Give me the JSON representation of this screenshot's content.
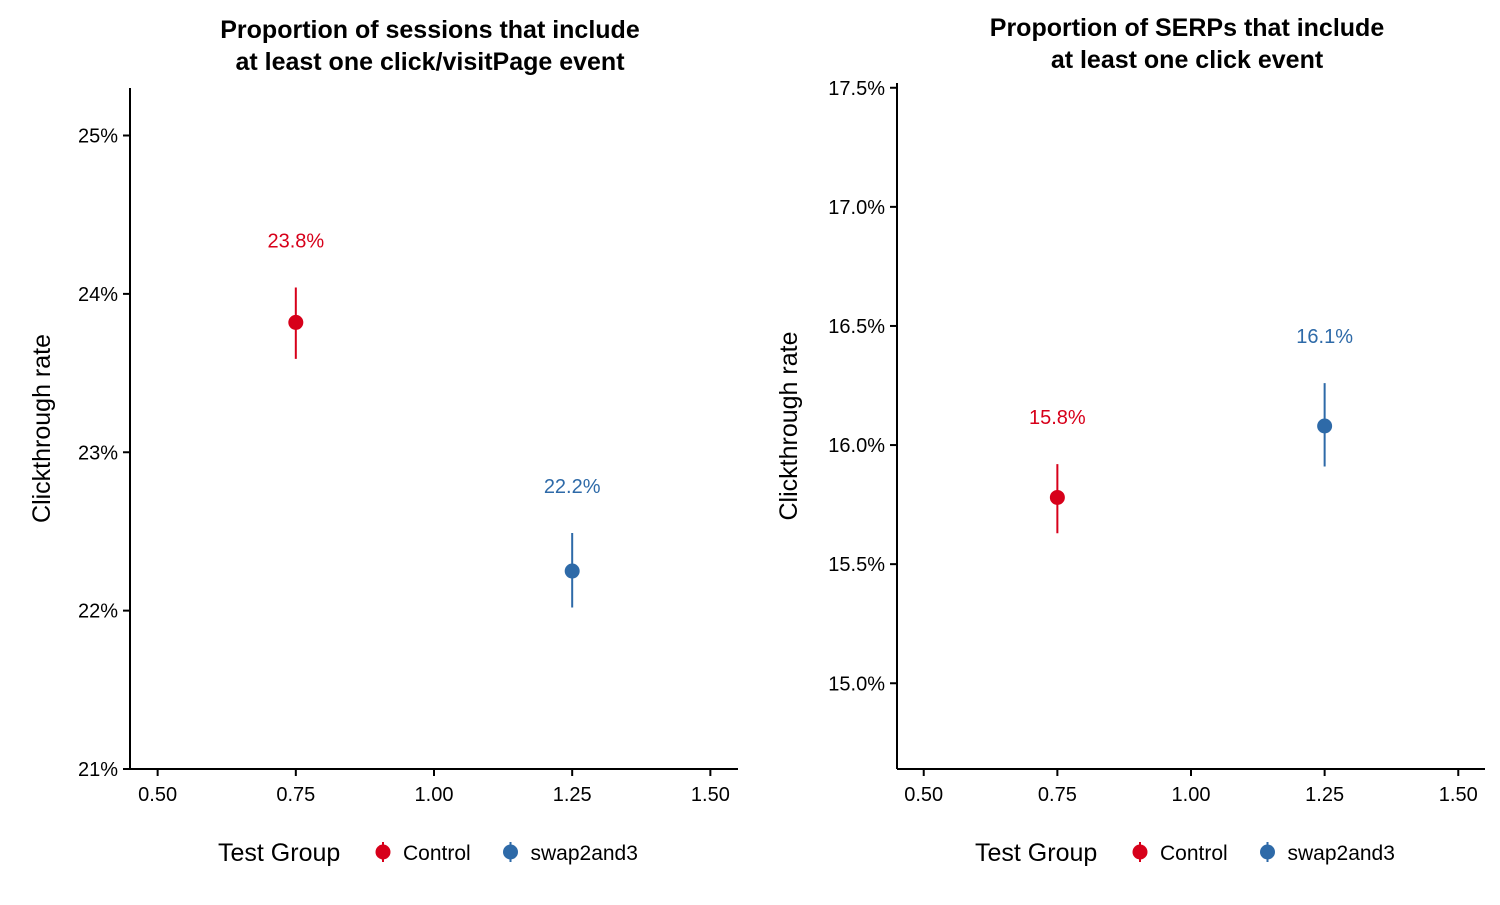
{
  "chart_data": [
    {
      "type": "scatter",
      "title_lines": [
        "Proportion of sessions that include",
        "at least one click/visitPage event"
      ],
      "xlabel": "",
      "ylabel": "Clickthrough rate",
      "xlim": [
        0.45,
        1.55
      ],
      "ylim": [
        0.21,
        0.253
      ],
      "x_ticks": [
        0.5,
        0.75,
        1.0,
        1.25,
        1.5
      ],
      "x_tick_labels": [
        "0.50",
        "0.75",
        "1.00",
        "1.25",
        "1.50"
      ],
      "y_ticks": [
        0.21,
        0.22,
        0.23,
        0.24,
        0.25
      ],
      "y_tick_labels": [
        "21%",
        "22%",
        "23%",
        "24%",
        "25%"
      ],
      "grid": false,
      "legend_position": "bottom",
      "legend_title": "Test Group",
      "series": [
        {
          "name": "Control",
          "color": "#d7001a",
          "x": 0.75,
          "y": 0.2382,
          "lower": 0.2359,
          "upper": 0.2404,
          "label": "23.8%"
        },
        {
          "name": "swap2and3",
          "color": "#2e6aa8",
          "x": 1.25,
          "y": 0.2225,
          "lower": 0.2202,
          "upper": 0.2249,
          "label": "22.2%"
        }
      ]
    },
    {
      "type": "scatter",
      "title_lines": [
        "Proportion of SERPs that include",
        "at least one click event"
      ],
      "xlabel": "",
      "ylabel": "Clickthrough rate",
      "xlim": [
        0.45,
        1.55
      ],
      "ylim": [
        0.1464,
        0.1752
      ],
      "x_ticks": [
        0.5,
        0.75,
        1.0,
        1.25,
        1.5
      ],
      "x_tick_labels": [
        "0.50",
        "0.75",
        "1.00",
        "1.25",
        "1.50"
      ],
      "y_ticks": [
        0.15,
        0.155,
        0.16,
        0.165,
        0.17,
        0.175
      ],
      "y_tick_labels": [
        "15.0%",
        "15.5%",
        "16.0%",
        "16.5%",
        "17.0%",
        "17.5%"
      ],
      "grid": false,
      "legend_position": "bottom",
      "legend_title": "Test Group",
      "series": [
        {
          "name": "Control",
          "color": "#d7001a",
          "x": 0.75,
          "y": 0.1578,
          "lower": 0.1563,
          "upper": 0.1592,
          "label": "15.8%"
        },
        {
          "name": "swap2and3",
          "color": "#2e6aa8",
          "x": 1.25,
          "y": 0.1608,
          "lower": 0.1591,
          "upper": 0.1626,
          "label": "16.1%"
        }
      ]
    }
  ]
}
